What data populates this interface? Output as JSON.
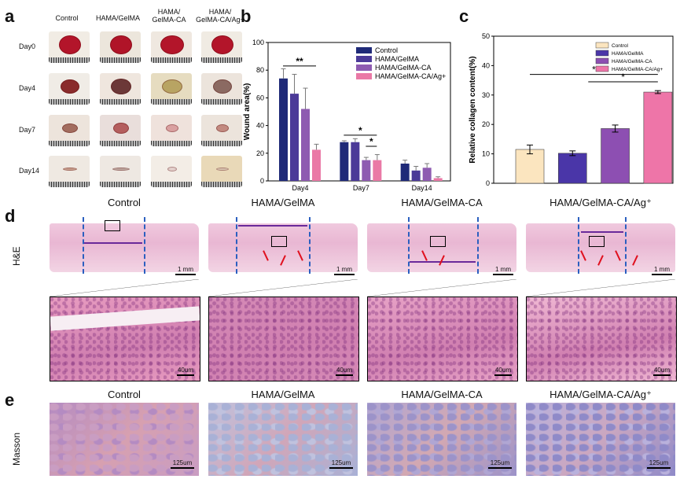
{
  "panel_a": {
    "letter": "a",
    "columns": [
      "Control",
      "HAMA/GelMA",
      "HAMA/\nGelMA-CA",
      "HAMA/\nGelMA-CA/Ag+"
    ],
    "rows": [
      "Day0",
      "Day4",
      "Day7",
      "Day14"
    ]
  },
  "panel_b": {
    "letter": "b",
    "chart_data": {
      "type": "bar",
      "categories": [
        "Day4",
        "Day7",
        "Day14"
      ],
      "series": [
        {
          "name": "Control",
          "values": [
            74,
            28,
            12.5
          ],
          "errors": [
            7,
            1,
            2.5
          ]
        },
        {
          "name": "HAMA/GelMA",
          "values": [
            63,
            28,
            7.5
          ],
          "errors": [
            14,
            2.5,
            3
          ]
        },
        {
          "name": "HAMA/GelMA-CA",
          "values": [
            52,
            15,
            9.5
          ],
          "errors": [
            15,
            2,
            3
          ]
        },
        {
          "name": "HAMA/GelMA-CA/Ag+",
          "values": [
            22.5,
            15,
            2
          ],
          "errors": [
            4,
            4,
            1
          ]
        }
      ],
      "colors": [
        "#1f2a78",
        "#4b3a98",
        "#8e5bb1",
        "#ea79a6"
      ],
      "ylabel": "Wound area(%)",
      "ylim": [
        0,
        100
      ],
      "yticks": [
        "0",
        "20",
        "40",
        "60",
        "80",
        "100"
      ],
      "significance": [
        "**",
        "*",
        "*"
      ],
      "legend_position": "top-right"
    }
  },
  "panel_c": {
    "letter": "c",
    "chart_data": {
      "type": "bar",
      "categories": [
        "Control",
        "HAMA/GelMA",
        "HAMA/GelMA-CA",
        "HAMA/GelMA-CA/Ag+"
      ],
      "values": [
        11.5,
        10.2,
        18.6,
        31
      ],
      "errors": [
        1.5,
        0.8,
        1.2,
        0.5
      ],
      "colors": [
        "#fbe5bf",
        "#4a36a8",
        "#8d4fb2",
        "#ee75a8"
      ],
      "ylabel": "Relative collagen content(%)",
      "ylim": [
        0,
        50
      ],
      "yticks": [
        "0",
        "10",
        "20",
        "30",
        "40",
        "50"
      ],
      "significance": [
        "*",
        "*"
      ],
      "legend_position": "top-right"
    }
  },
  "panel_d": {
    "letter": "d",
    "side_label": "H&E",
    "columns": [
      "Control",
      "HAMA/GelMA",
      "HAMA/GelMA-CA",
      "HAMA/GelMA-CA/Ag⁺"
    ],
    "scale_top": "1 mm",
    "scale_bottom": "40um"
  },
  "panel_e": {
    "letter": "e",
    "side_label": "Masson",
    "columns": [
      "Control",
      "HAMA/GelMA",
      "HAMA/GelMA-CA",
      "HAMA/GelMA-CA/Ag⁺"
    ],
    "scale": "125um"
  }
}
